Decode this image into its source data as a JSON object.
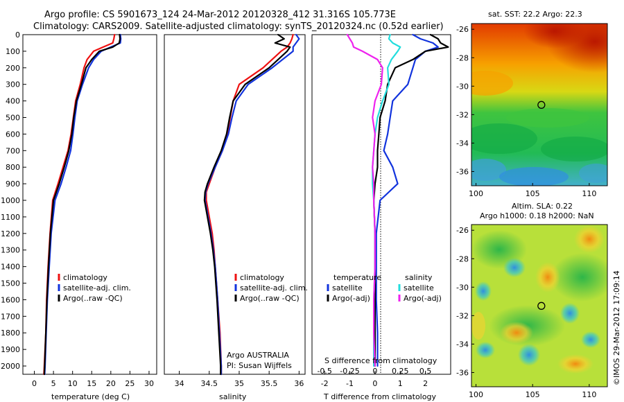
{
  "header": {
    "line1": "Argo profile: CS 5901673_124 24-Mar-2012 20120328_412 31.316S 105.773E",
    "line2": "Climatology: CARS2009. Satellite-adjusted climatology: synTS_20120324.nc (0.52d earlier)"
  },
  "colors": {
    "climatology": "#ee1111",
    "satellite": "#1133dd",
    "argo": "#000000",
    "sat_salinity": "#22dddd",
    "argo_salinity": "#ee22ee"
  },
  "depth_ticks": [
    "0",
    "100",
    "200",
    "300",
    "400",
    "500",
    "600",
    "700",
    "800",
    "900",
    "1000",
    "1100",
    "1200",
    "1300",
    "1400",
    "1500",
    "1600",
    "1700",
    "1800",
    "1900",
    "2000"
  ],
  "chart_data": [
    {
      "type": "line",
      "name": "temperature-profile",
      "xlabel": "temperature (deg C)",
      "xlim": [
        -3,
        32
      ],
      "ylim": [
        2050,
        0
      ],
      "x_ticks": [
        "0",
        "5",
        "10",
        "15",
        "20",
        "25",
        "30"
      ],
      "x_tick_values": [
        0,
        5,
        10,
        15,
        20,
        25,
        30
      ],
      "legend": [
        "climatology",
        "satellite-adj. clim.",
        "Argo(..raw -QC)"
      ],
      "legend_position": "lower-middle",
      "depth": [
        0,
        25,
        50,
        75,
        100,
        150,
        200,
        300,
        400,
        500,
        600,
        700,
        800,
        900,
        1000,
        1200,
        1400,
        1600,
        1800,
        2000,
        2050
      ],
      "series": [
        {
          "name": "climatology",
          "color": "#ee1111",
          "x": [
            21,
            20.8,
            20.5,
            18,
            15.5,
            13.8,
            13,
            12,
            10.8,
            10.2,
            9.6,
            8.8,
            7.5,
            6.2,
            4.8,
            4.1,
            3.6,
            3.2,
            3.0,
            2.6,
            2.5
          ]
        },
        {
          "name": "satellite-adj. clim.",
          "color": "#1133dd",
          "x": [
            22.5,
            22.6,
            22.5,
            20,
            17.5,
            15.5,
            14.2,
            12.6,
            11.2,
            10.6,
            10.1,
            9.5,
            8.3,
            7.0,
            5.4,
            4.4,
            3.9,
            3.4,
            3.1,
            2.8,
            2.7
          ]
        },
        {
          "name": "Argo(..raw -QC)",
          "color": "#000000",
          "x": [
            22.3,
            22.4,
            22.2,
            20.5,
            17,
            15,
            13.5,
            12.3,
            11.0,
            10.3,
            9.8,
            9.0,
            7.8,
            6.5,
            5.0,
            4.2,
            3.7,
            3.3,
            3.0,
            2.7,
            2.6
          ]
        }
      ]
    },
    {
      "type": "line",
      "name": "salinity-profile",
      "xlabel": "salinity",
      "xlim": [
        33.75,
        36.1
      ],
      "ylim": [
        2050,
        0
      ],
      "x_ticks": [
        "34",
        "34.5",
        "35",
        "35.5",
        "36"
      ],
      "x_tick_values": [
        34,
        34.5,
        35,
        35.5,
        36
      ],
      "legend": [
        "climatology",
        "satellite-adj. clim.",
        "Argo(..raw -QC)"
      ],
      "legend_position": "lower-middle",
      "annotation": [
        "Argo AUSTRALIA",
        "PI: Susan Wijffels"
      ],
      "depth": [
        0,
        25,
        50,
        75,
        100,
        200,
        300,
        400,
        500,
        600,
        700,
        800,
        900,
        950,
        1000,
        1100,
        1200,
        1300,
        1400,
        1500,
        1600,
        1800,
        2000,
        2050
      ],
      "series": [
        {
          "name": "climatology",
          "color": "#ee1111",
          "x": [
            35.9,
            35.88,
            35.85,
            35.8,
            35.7,
            35.4,
            35.0,
            34.9,
            34.85,
            34.8,
            34.72,
            34.6,
            34.5,
            34.45,
            34.45,
            34.5,
            34.55,
            34.58,
            34.6,
            34.62,
            34.64,
            34.68,
            34.7,
            34.7
          ]
        },
        {
          "name": "satellite-adj. clim.",
          "color": "#1133dd",
          "x": [
            35.95,
            36.0,
            35.95,
            35.9,
            35.9,
            35.55,
            35.15,
            34.95,
            34.88,
            34.82,
            34.72,
            34.6,
            34.48,
            34.44,
            34.43,
            34.48,
            34.53,
            34.57,
            34.6,
            34.62,
            34.64,
            34.67,
            34.7,
            34.7
          ]
        },
        {
          "name": "Argo(..raw -QC)",
          "color": "#000000",
          "x": [
            35.65,
            35.75,
            35.6,
            35.85,
            35.8,
            35.5,
            35.1,
            34.9,
            34.84,
            34.79,
            34.7,
            34.58,
            34.47,
            34.43,
            34.42,
            34.47,
            34.52,
            34.56,
            34.59,
            34.61,
            34.63,
            34.66,
            34.69,
            34.69
          ]
        }
      ]
    },
    {
      "type": "line",
      "name": "difference-profile",
      "xlabel": "T difference from climatology",
      "xlabel_top": "S difference from climatology",
      "xlim": [
        -2.5,
        3.0
      ],
      "ylim": [
        2050,
        0
      ],
      "x_ticks": [
        "-2",
        "-1",
        "0",
        "1",
        "2"
      ],
      "x_tick_values": [
        -2,
        -1,
        0,
        1,
        2
      ],
      "x_ticks_top": [
        "-0.5",
        "-0.25",
        "0",
        "0.25",
        "0.5"
      ],
      "legend_groups": [
        {
          "title": "temperature",
          "items": [
            "satellite",
            "Argo(-adj)"
          ]
        },
        {
          "title": "salinity",
          "items": [
            "satellite",
            "Argo(-adj)"
          ]
        }
      ],
      "legend_position": "lower-middle",
      "depth": [
        0,
        25,
        50,
        75,
        100,
        150,
        200,
        300,
        400,
        500,
        600,
        700,
        800,
        900,
        1000,
        1200,
        1400,
        1600,
        1800,
        2000
      ],
      "series": [
        {
          "name": "satellite",
          "group": "temperature",
          "color": "#1133dd",
          "x": [
            1.5,
            1.8,
            2.3,
            2.5,
            2.0,
            1.6,
            1.5,
            1.3,
            0.7,
            0.6,
            0.5,
            0.35,
            0.7,
            0.9,
            0.2,
            0.05,
            0.05,
            0.05,
            0.1,
            0.1
          ]
        },
        {
          "name": "Argo(-adj)",
          "group": "temperature",
          "color": "#000000",
          "x": [
            2.2,
            2.5,
            2.6,
            2.9,
            2.0,
            1.5,
            0.8,
            0.5,
            0.4,
            0.2,
            0.15,
            0.1,
            0.1,
            0.0,
            -0.05,
            0.0,
            0.0,
            0.0,
            0.0,
            0.0
          ]
        },
        {
          "name": "satellite",
          "group": "salinity",
          "color": "#22dddd",
          "x": [
            0.6,
            0.55,
            0.7,
            1.0,
            0.9,
            0.65,
            0.5,
            0.55,
            0.3,
            0.1,
            0.0,
            -0.05,
            -0.1,
            -0.1,
            -0.05,
            0.0,
            0.0,
            -0.05,
            -0.05,
            -0.05
          ]
        },
        {
          "name": "Argo(-adj)",
          "group": "salinity",
          "color": "#ee22ee",
          "x": [
            -1.1,
            -1.0,
            -0.9,
            -0.85,
            -0.5,
            0.1,
            0.3,
            0.25,
            0.0,
            -0.1,
            0.0,
            -0.05,
            -0.1,
            -0.05,
            -0.05,
            0.0,
            0.0,
            -0.05,
            -0.05,
            0.0
          ]
        }
      ]
    },
    {
      "type": "heatmap",
      "name": "sst-map",
      "title": "sat. SST: 22.2  Argo: 22.3",
      "x_ticks": [
        "100",
        "105",
        "110"
      ],
      "x_tick_values": [
        100,
        105,
        110
      ],
      "y_ticks": [
        "-26",
        "-28",
        "-30",
        "-32",
        "-34",
        "-36"
      ],
      "y_tick_values": [
        -26,
        -28,
        -30,
        -32,
        -34,
        -36
      ],
      "xlim": [
        99.6,
        111.6
      ],
      "ylim": [
        -25.6,
        -37.0
      ],
      "marker": {
        "lon": 105.773,
        "lat": -31.316
      }
    },
    {
      "type": "heatmap",
      "name": "sla-map",
      "title": "Altim. SLA: 0.22",
      "subtitle": "Argo h1000: 0.18 h2000: NaN",
      "x_ticks": [
        "100",
        "105",
        "110"
      ],
      "x_tick_values": [
        100,
        105,
        110
      ],
      "y_ticks": [
        "-26",
        "-28",
        "-30",
        "-32",
        "-34",
        "-36"
      ],
      "y_tick_values": [
        -26,
        -28,
        -30,
        -32,
        -34,
        -36
      ],
      "xlim": [
        99.6,
        111.6
      ],
      "ylim": [
        -25.6,
        -37.0
      ],
      "marker": {
        "lon": 105.773,
        "lat": -31.316
      }
    }
  ],
  "sidebar_text": "©IMOS 29-Mar-2012 17:09:14"
}
